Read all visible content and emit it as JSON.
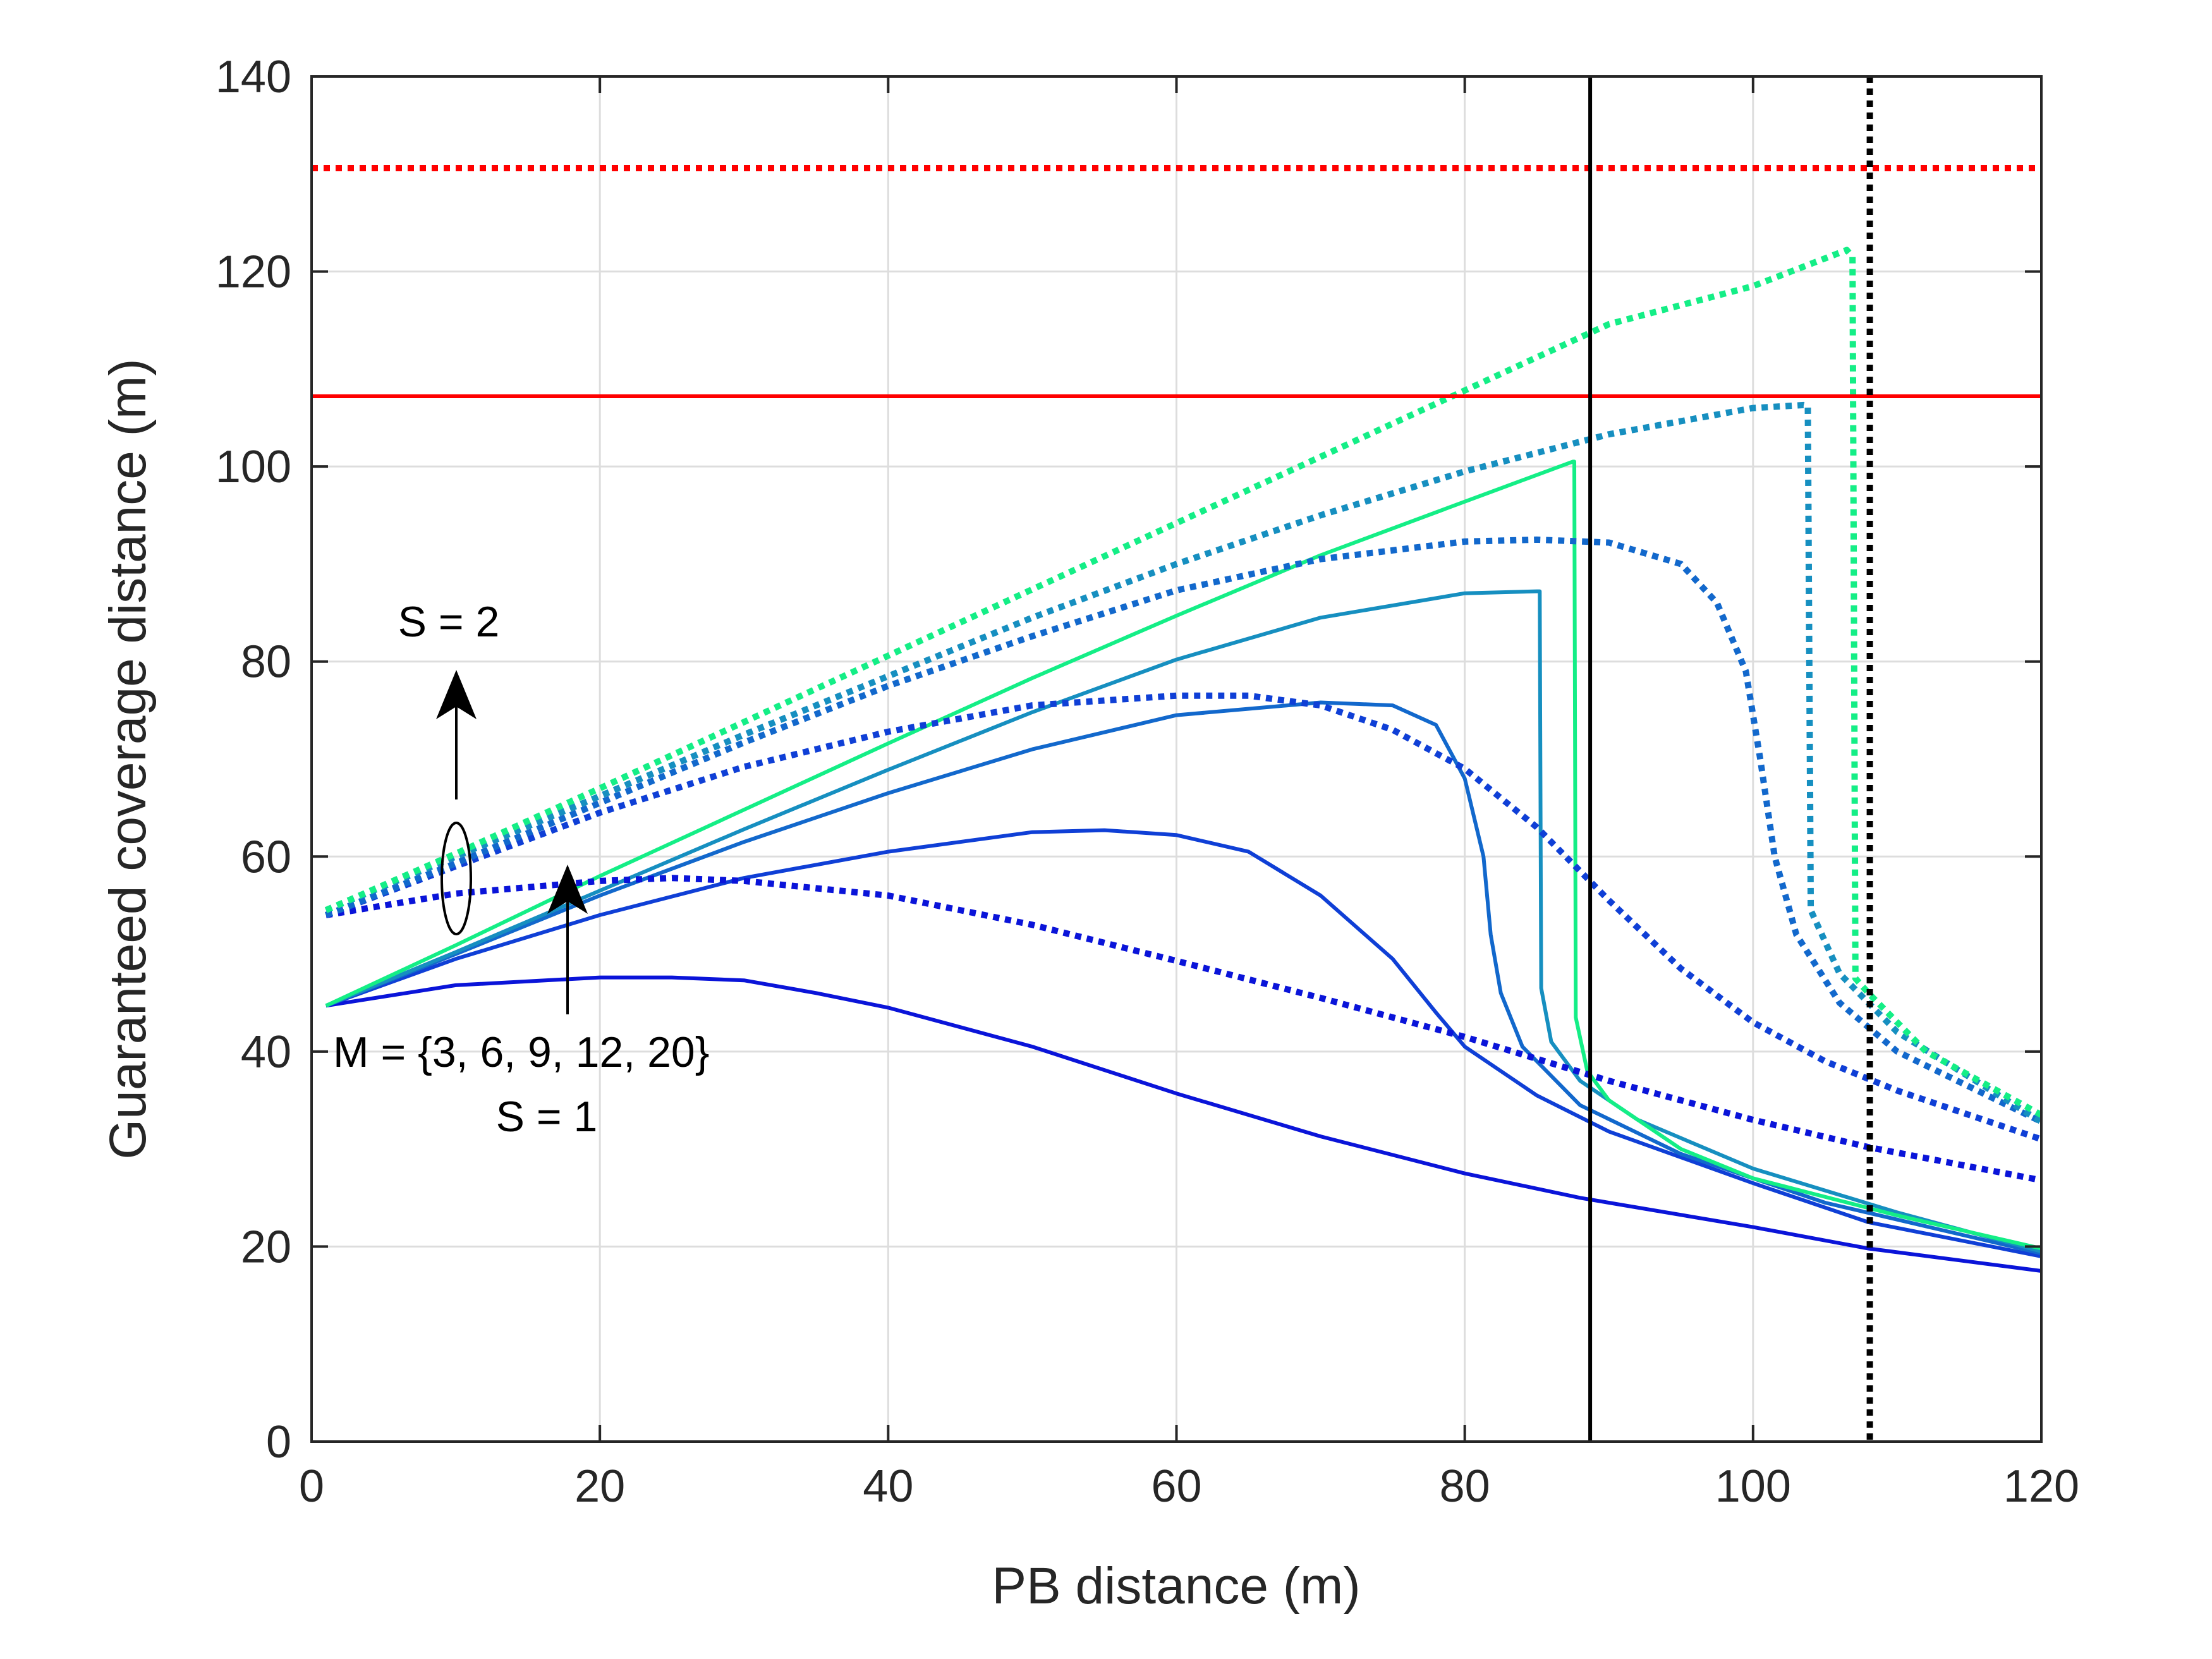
{
  "colors": {
    "m3": "#0a14d9",
    "m6": "#0f3fd6",
    "m9": "#1268cc",
    "m12": "#168fc0",
    "m20": "#14ee86",
    "red": "#ff0000",
    "black": "#000000",
    "grid": "#dddddd"
  },
  "chart_data": {
    "type": "line",
    "xlabel": "PB distance (m)",
    "ylabel": "Guaranteed coverage distance (m)",
    "xlim": [
      0,
      120
    ],
    "ylim": [
      0,
      140
    ],
    "xticks": [
      0,
      20,
      40,
      60,
      80,
      100,
      120
    ],
    "yticks": [
      0,
      20,
      40,
      60,
      80,
      100,
      120,
      140
    ],
    "xtick_labels": [
      "0",
      "20",
      "40",
      "60",
      "80",
      "100",
      "120"
    ],
    "ytick_labels": [
      "0",
      "20",
      "40",
      "60",
      "80",
      "100",
      "120",
      "140"
    ],
    "grid": true,
    "series": [
      {
        "name": "S=1, M=3",
        "color_key": "m3",
        "style": "solid",
        "points": [
          [
            1,
            44.7
          ],
          [
            10,
            46.8
          ],
          [
            20,
            47.6
          ],
          [
            25,
            47.6
          ],
          [
            30,
            47.3
          ],
          [
            35,
            46
          ],
          [
            40,
            44.5
          ],
          [
            50,
            40.5
          ],
          [
            60,
            35.7
          ],
          [
            70,
            31.3
          ],
          [
            80,
            27.5
          ],
          [
            88,
            25
          ],
          [
            100,
            22
          ],
          [
            108,
            19.8
          ],
          [
            120,
            17.5
          ]
        ]
      },
      {
        "name": "S=1, M=6",
        "color_key": "m6",
        "style": "solid",
        "points": [
          [
            1,
            44.7
          ],
          [
            10,
            49.5
          ],
          [
            20,
            54
          ],
          [
            30,
            57.8
          ],
          [
            40,
            60.5
          ],
          [
            50,
            62.5
          ],
          [
            55,
            62.7
          ],
          [
            60,
            62.2
          ],
          [
            65,
            60.5
          ],
          [
            70,
            56
          ],
          [
            75,
            49.5
          ],
          [
            78,
            44
          ],
          [
            80,
            40.5
          ],
          [
            85,
            35.5
          ],
          [
            90,
            31.8
          ],
          [
            100,
            26.5
          ],
          [
            108,
            22.5
          ],
          [
            120,
            19
          ]
        ]
      },
      {
        "name": "S=1, M=9",
        "color_key": "m9",
        "style": "solid",
        "points": [
          [
            1,
            44.7
          ],
          [
            10,
            50
          ],
          [
            20,
            56
          ],
          [
            30,
            61.5
          ],
          [
            40,
            66.5
          ],
          [
            50,
            71
          ],
          [
            60,
            74.5
          ],
          [
            70,
            75.8
          ],
          [
            75,
            75.5
          ],
          [
            78,
            73.5
          ],
          [
            80,
            68
          ],
          [
            81.3,
            60
          ],
          [
            81.8,
            52
          ],
          [
            82.5,
            46
          ],
          [
            84,
            40.5
          ],
          [
            88,
            34.5
          ],
          [
            95,
            29.5
          ],
          [
            105,
            24.5
          ],
          [
            120,
            19.3
          ]
        ]
      },
      {
        "name": "S=1, M=12",
        "color_key": "m12",
        "style": "solid",
        "points": [
          [
            1,
            44.7
          ],
          [
            10,
            50.2
          ],
          [
            20,
            56.5
          ],
          [
            30,
            62.8
          ],
          [
            40,
            68.9
          ],
          [
            50,
            74.8
          ],
          [
            60,
            80.2
          ],
          [
            70,
            84.5
          ],
          [
            80,
            87
          ],
          [
            85,
            87.2
          ],
          [
            85.2,
            87.2
          ],
          [
            85.3,
            46.5
          ],
          [
            86,
            41
          ],
          [
            88,
            37
          ],
          [
            92,
            33
          ],
          [
            100,
            28
          ],
          [
            110,
            23.5
          ],
          [
            120,
            19.5
          ]
        ]
      },
      {
        "name": "S=1, M=20",
        "color_key": "m20",
        "style": "solid",
        "points": [
          [
            1,
            44.7
          ],
          [
            10,
            50.9
          ],
          [
            20,
            58
          ],
          [
            30,
            64.8
          ],
          [
            40,
            71.6
          ],
          [
            50,
            78.3
          ],
          [
            60,
            84.7
          ],
          [
            70,
            90.9
          ],
          [
            80,
            96.4
          ],
          [
            87.5,
            100.5
          ],
          [
            87.6,
            100.5
          ],
          [
            87.7,
            43.5
          ],
          [
            88.5,
            38
          ],
          [
            90,
            35
          ],
          [
            95,
            30
          ],
          [
            100,
            27
          ],
          [
            110,
            23.2
          ],
          [
            120,
            19.8
          ]
        ]
      },
      {
        "name": "S=2, M=3",
        "color_key": "m3",
        "style": "dotted",
        "points": [
          [
            1,
            54
          ],
          [
            10,
            56.2
          ],
          [
            20,
            57.5
          ],
          [
            25,
            57.8
          ],
          [
            30,
            57.5
          ],
          [
            40,
            56
          ],
          [
            50,
            53
          ],
          [
            60,
            49.3
          ],
          [
            70,
            45.5
          ],
          [
            80,
            41.5
          ],
          [
            90,
            37
          ],
          [
            100,
            33
          ],
          [
            108,
            30.2
          ],
          [
            120,
            26.8
          ]
        ]
      },
      {
        "name": "S=2, M=6",
        "color_key": "m6",
        "style": "dotted",
        "points": [
          [
            1,
            54
          ],
          [
            10,
            59
          ],
          [
            20,
            64.5
          ],
          [
            30,
            69.2
          ],
          [
            40,
            72.8
          ],
          [
            50,
            75.5
          ],
          [
            60,
            76.5
          ],
          [
            65,
            76.5
          ],
          [
            70,
            75.5
          ],
          [
            75,
            73
          ],
          [
            80,
            69
          ],
          [
            85,
            63
          ],
          [
            90,
            55.5
          ],
          [
            95,
            48.5
          ],
          [
            100,
            43
          ],
          [
            105,
            39
          ],
          [
            110,
            36
          ],
          [
            120,
            31
          ]
        ]
      },
      {
        "name": "S=2, M=9",
        "color_key": "m9",
        "style": "dotted",
        "points": [
          [
            1,
            54
          ],
          [
            10,
            59.3
          ],
          [
            20,
            65.5
          ],
          [
            30,
            71.7
          ],
          [
            40,
            77.5
          ],
          [
            50,
            82.6
          ],
          [
            60,
            87.3
          ],
          [
            70,
            90.5
          ],
          [
            80,
            92.3
          ],
          [
            85,
            92.5
          ],
          [
            90,
            92.2
          ],
          [
            95,
            90
          ],
          [
            97.5,
            86
          ],
          [
            99.5,
            79
          ],
          [
            100.5,
            70
          ],
          [
            101.5,
            60
          ],
          [
            103,
            52
          ],
          [
            106,
            45
          ],
          [
            110,
            40
          ],
          [
            120,
            32.8
          ]
        ]
      },
      {
        "name": "S=2, M=12",
        "color_key": "m12",
        "style": "dotted",
        "points": [
          [
            1,
            54.5
          ],
          [
            10,
            60
          ],
          [
            20,
            66.2
          ],
          [
            30,
            72.5
          ],
          [
            40,
            78.5
          ],
          [
            50,
            84.5
          ],
          [
            60,
            90
          ],
          [
            70,
            95
          ],
          [
            80,
            99.5
          ],
          [
            90,
            103.3
          ],
          [
            100,
            106
          ],
          [
            103.5,
            106.3
          ],
          [
            103.8,
            106.2
          ],
          [
            104,
            54.5
          ],
          [
            106,
            48
          ],
          [
            110,
            42
          ],
          [
            120,
            32.8
          ]
        ]
      },
      {
        "name": "S=2, M=20",
        "color_key": "m20",
        "style": "dotted",
        "points": [
          [
            1,
            54.5
          ],
          [
            10,
            60.3
          ],
          [
            20,
            67
          ],
          [
            30,
            73.8
          ],
          [
            40,
            80.6
          ],
          [
            50,
            87.4
          ],
          [
            60,
            94.2
          ],
          [
            70,
            101
          ],
          [
            80,
            107.8
          ],
          [
            90,
            114.6
          ],
          [
            100,
            118.5
          ],
          [
            106.5,
            122.2
          ],
          [
            106.9,
            121.5
          ],
          [
            107.1,
            47.5
          ],
          [
            108,
            46
          ],
          [
            112,
            40
          ],
          [
            120,
            33.5
          ]
        ]
      }
    ],
    "reference_lines": [
      {
        "name": "red solid horizontal",
        "orientation": "horizontal",
        "value": 107.2,
        "color_key": "red",
        "style": "solid"
      },
      {
        "name": "red dotted horizontal",
        "orientation": "horizontal",
        "value": 130.6,
        "color_key": "red",
        "style": "dotted"
      },
      {
        "name": "black solid vertical",
        "orientation": "vertical",
        "value": 88.7,
        "color_key": "black",
        "style": "solid"
      },
      {
        "name": "black dotted vertical",
        "orientation": "vertical",
        "value": 108.1,
        "color_key": "black",
        "style": "dotted"
      }
    ],
    "annotations": {
      "s2_label": "S = 2",
      "m_label": "M = {3, 6, 9, 12, 20}",
      "s1_label": "S = 1"
    }
  }
}
